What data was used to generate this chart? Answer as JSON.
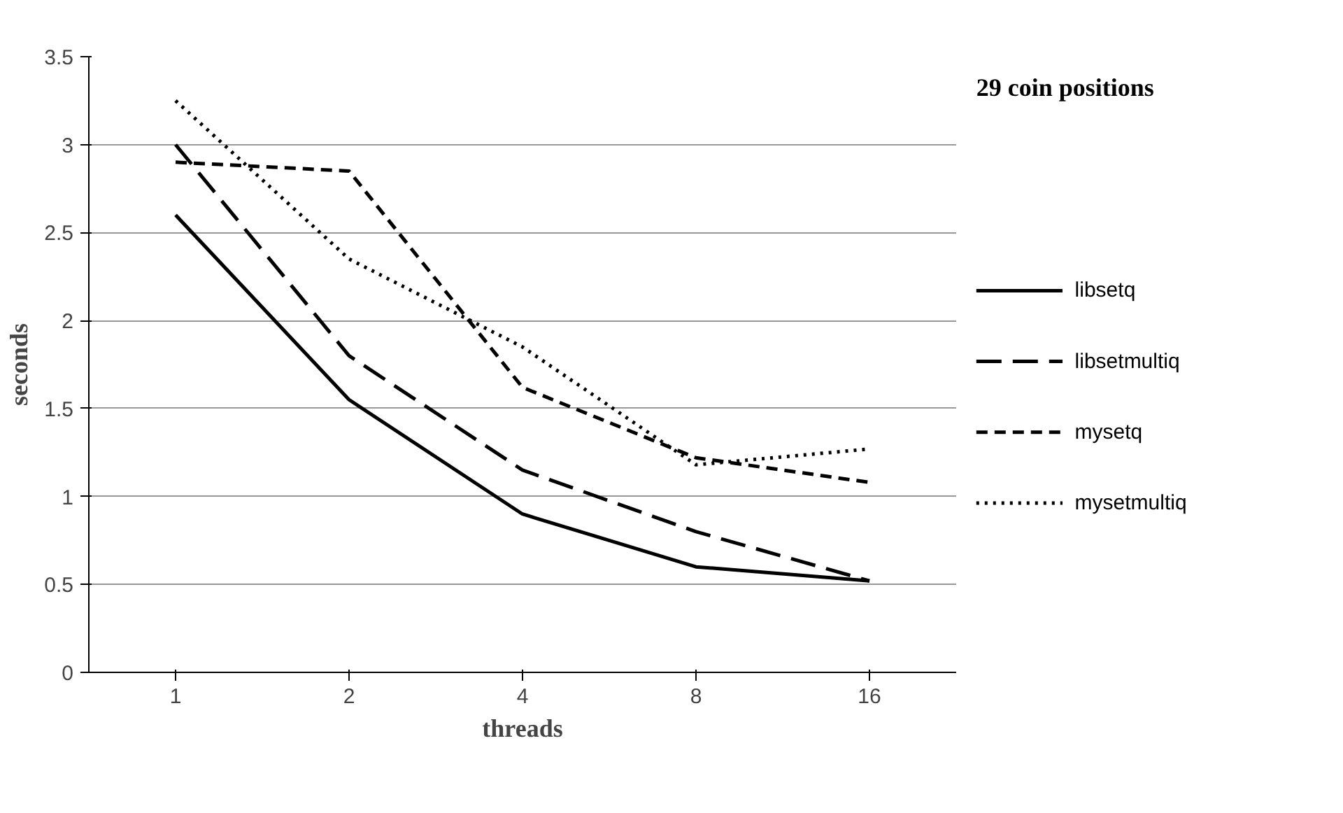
{
  "chart_data": {
    "type": "line",
    "title": "29 coin positions",
    "xlabel": "threads",
    "ylabel": "seconds",
    "categories": [
      "1",
      "2",
      "4",
      "8",
      "16"
    ],
    "ylim": [
      0,
      3.5
    ],
    "yticks": [
      0,
      0.5,
      1,
      1.5,
      2,
      2.5,
      3,
      3.5
    ],
    "grid": "y",
    "legend": "right",
    "marker": "none",
    "series": [
      {
        "name": "libsetq",
        "color": "#000000",
        "line_style": "solid",
        "values": [
          2.6,
          1.55,
          0.9,
          0.6,
          0.52
        ]
      },
      {
        "name": "libsetmultiq",
        "color": "#000000",
        "line_style": "longdash",
        "values": [
          3.0,
          1.8,
          1.15,
          0.8,
          0.52
        ]
      },
      {
        "name": "mysetq",
        "color": "#000000",
        "line_style": "dashed",
        "values": [
          2.9,
          2.85,
          1.62,
          1.22,
          1.08
        ]
      },
      {
        "name": "mysetmultiq",
        "color": "#000000",
        "line_style": "dotted",
        "values": [
          3.25,
          2.35,
          1.85,
          1.18,
          1.27
        ]
      }
    ]
  }
}
